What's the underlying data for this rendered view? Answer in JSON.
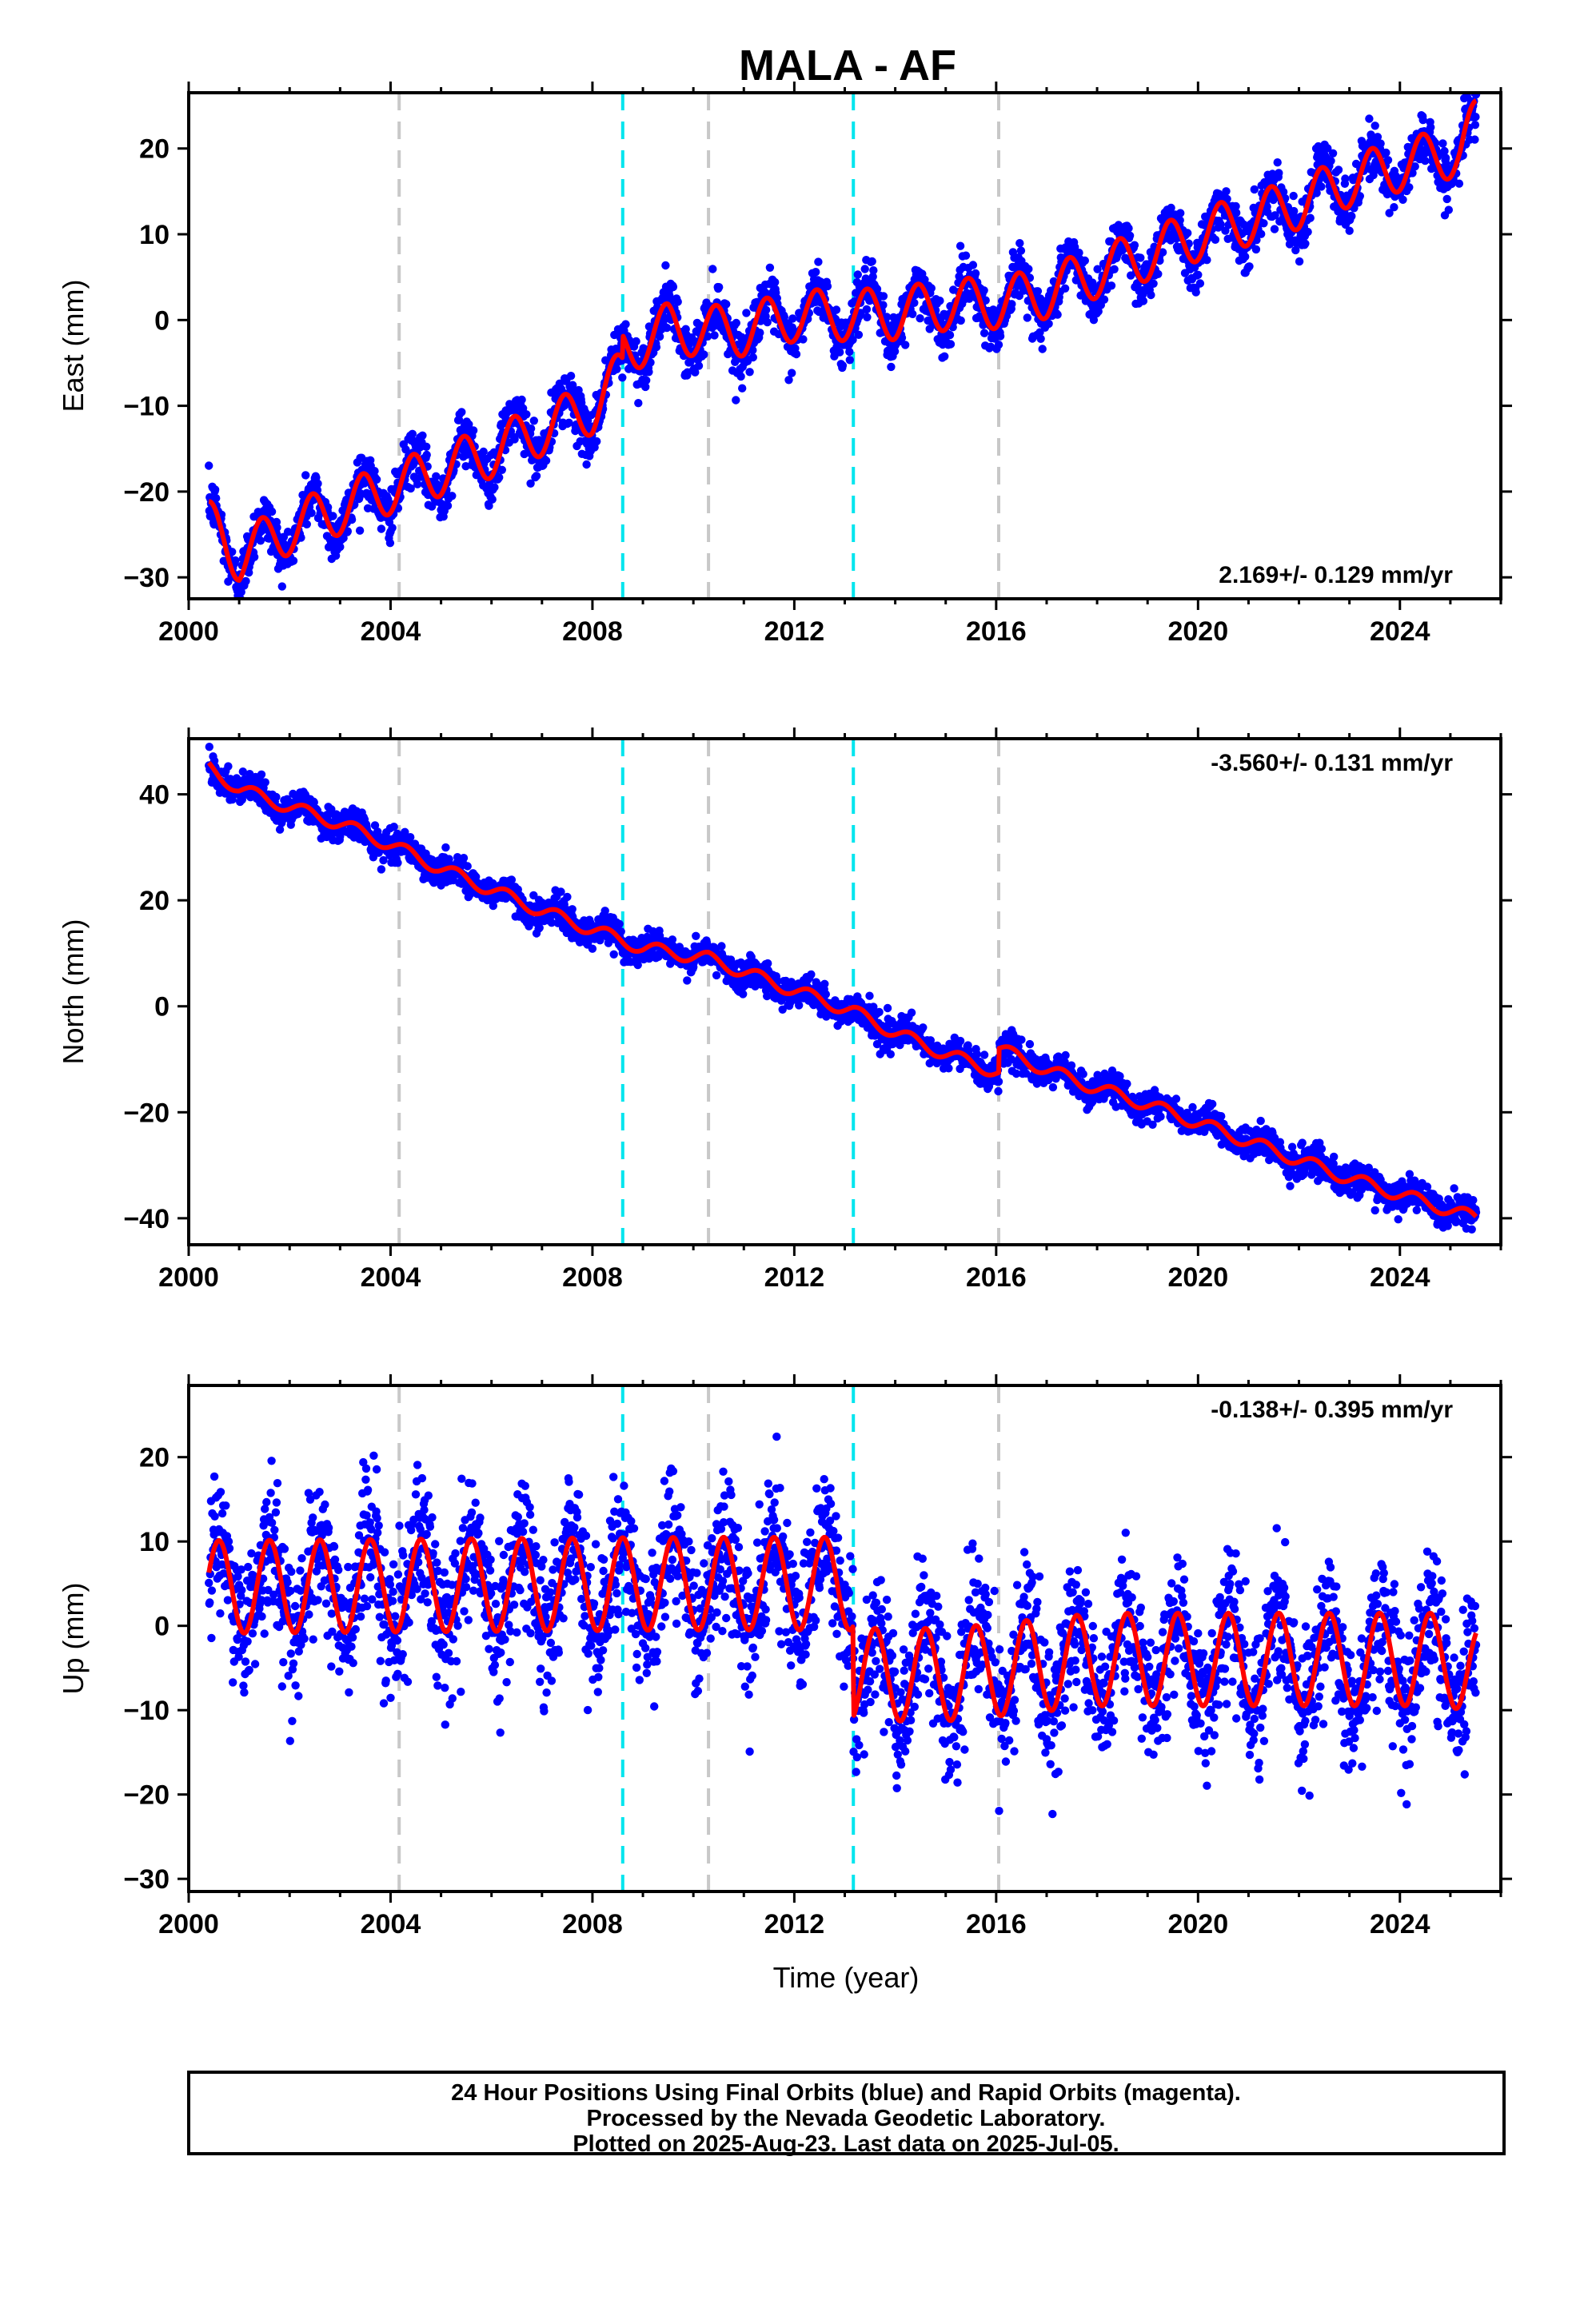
{
  "title": "MALA - AF",
  "footer": {
    "line1": "24 Hour Positions Using Final Orbits (blue) and Rapid Orbits (magenta).",
    "line2": "Processed by the Nevada Geodetic Laboratory.",
    "line3": "Plotted on 2025-Aug-23. Last data on 2025-Jul-05."
  },
  "colors": {
    "points": "#0000ff",
    "model": "#ff0000",
    "equipment_change": "#c8c8c8",
    "earthquake": "#00e5ee",
    "axis": "#000000"
  },
  "chart_data": [
    {
      "type": "scatter",
      "component": "east",
      "ylabel": "East (mm)",
      "xlabel": "",
      "xlim": [
        2000.0,
        2026.0
      ],
      "ylim": [
        -32.5,
        26.5
      ],
      "xticks": [
        2000,
        2004,
        2008,
        2012,
        2016,
        2020,
        2024
      ],
      "yticks": [
        -30,
        -20,
        -10,
        0,
        10,
        20
      ],
      "rate_text": "2.169+/- 0.129 mm/yr",
      "rate_position": "bottom-right",
      "vlines_gray": [
        2004.17,
        2010.3,
        2016.05
      ],
      "vlines_cyan": [
        2008.6,
        2013.17
      ],
      "data_start": 2000.4,
      "data_end": 2025.51,
      "scatter_noise_mm": 1.5,
      "model_nodes": [
        [
          2000.4,
          -24.0
        ],
        [
          2001.0,
          -27.5
        ],
        [
          2002.0,
          -24.3
        ],
        [
          2003.0,
          -22.0
        ],
        [
          2004.0,
          -19.6
        ],
        [
          2005.0,
          -17.5
        ],
        [
          2006.0,
          -15.4
        ],
        [
          2007.0,
          -12.8
        ],
        [
          2008.0,
          -10.3
        ],
        [
          2008.59,
          -6.3
        ],
        [
          2008.61,
          -3.5
        ],
        [
          2009.5,
          -1.0
        ],
        [
          2010.3,
          -1.3
        ],
        [
          2011.0,
          -1.2
        ],
        [
          2012.0,
          0.5
        ],
        [
          2013.17,
          0.6
        ],
        [
          2014.0,
          0.7
        ],
        [
          2015.0,
          1.8
        ],
        [
          2016.05,
          2.0
        ],
        [
          2017.0,
          3.2
        ],
        [
          2018.0,
          5.6
        ],
        [
          2019.0,
          7.6
        ],
        [
          2020.0,
          9.9
        ],
        [
          2021.0,
          11.7
        ],
        [
          2022.0,
          13.6
        ],
        [
          2023.0,
          16.2
        ],
        [
          2024.0,
          18.0
        ],
        [
          2025.2,
          19.8
        ],
        [
          2025.51,
          22.8
        ]
      ],
      "seasonal_amp": 3.0,
      "seasonal_phase_peak": 0.45
    },
    {
      "type": "scatter",
      "component": "north",
      "ylabel": "North (mm)",
      "xlabel": "",
      "xlim": [
        2000.0,
        2026.0
      ],
      "ylim": [
        -45.0,
        50.5
      ],
      "xticks": [
        2000,
        2004,
        2008,
        2012,
        2016,
        2020,
        2024
      ],
      "yticks": [
        -40,
        -20,
        0,
        20,
        40
      ],
      "rate_text": "-3.560+/- 0.131 mm/yr",
      "rate_position": "top-right",
      "vlines_gray": [
        2004.17,
        2010.3,
        2016.05
      ],
      "vlines_cyan": [
        2008.6,
        2013.17
      ],
      "data_start": 2000.4,
      "data_end": 2025.51,
      "scatter_noise_mm": 1.4,
      "model_nodes": [
        [
          2000.4,
          45.0
        ],
        [
          2001.0,
          41.0
        ],
        [
          2002.0,
          37.6
        ],
        [
          2003.0,
          34.5
        ],
        [
          2004.0,
          30.5
        ],
        [
          2005.0,
          26.0
        ],
        [
          2006.0,
          22.0
        ],
        [
          2007.0,
          18.0
        ],
        [
          2008.0,
          14.5
        ],
        [
          2009.0,
          11.0
        ],
        [
          2010.3,
          9.0
        ],
        [
          2011.0,
          6.5
        ],
        [
          2012.0,
          3.0
        ],
        [
          2013.17,
          -1.0
        ],
        [
          2014.0,
          -5.0
        ],
        [
          2015.0,
          -9.0
        ],
        [
          2016.05,
          -12.5
        ],
        [
          2016.06,
          -8.0
        ],
        [
          2017.0,
          -12.0
        ],
        [
          2018.0,
          -15.5
        ],
        [
          2019.0,
          -18.5
        ],
        [
          2020.0,
          -22.0
        ],
        [
          2021.0,
          -25.5
        ],
        [
          2022.0,
          -29.0
        ],
        [
          2023.0,
          -32.5
        ],
        [
          2024.0,
          -35.5
        ],
        [
          2025.51,
          -40.0
        ]
      ],
      "seasonal_amp": 1.2,
      "seasonal_phase_peak": 0.3
    },
    {
      "type": "scatter",
      "component": "up",
      "ylabel": "Up (mm)",
      "xlabel": "Time (year)",
      "xlim": [
        2000.0,
        2026.0
      ],
      "ylim": [
        -31.5,
        28.5
      ],
      "xticks": [
        2000,
        2004,
        2008,
        2012,
        2016,
        2020,
        2024
      ],
      "yticks": [
        -30,
        -20,
        -10,
        0,
        10,
        20
      ],
      "rate_text": "-0.138+/- 0.395 mm/yr",
      "rate_position": "top-right",
      "vlines_gray": [
        2004.17,
        2010.3,
        2016.05
      ],
      "vlines_cyan": [
        2008.6,
        2013.17
      ],
      "data_start": 2000.4,
      "data_end": 2025.51,
      "scatter_noise_mm": 4.0,
      "model_nodes": [
        [
          2000.4,
          4.6
        ],
        [
          2005.0,
          4.8
        ],
        [
          2010.0,
          5.0
        ],
        [
          2013.16,
          5.0
        ],
        [
          2013.18,
          -5.8
        ],
        [
          2015.0,
          -5.8
        ],
        [
          2016.05,
          -5.2
        ],
        [
          2018.0,
          -4.0
        ],
        [
          2021.0,
          -4.0
        ],
        [
          2025.0,
          -4.0
        ],
        [
          2025.51,
          -5.5
        ]
      ],
      "seasonal_amp": 5.5,
      "seasonal_phase_peak": 0.6
    }
  ]
}
